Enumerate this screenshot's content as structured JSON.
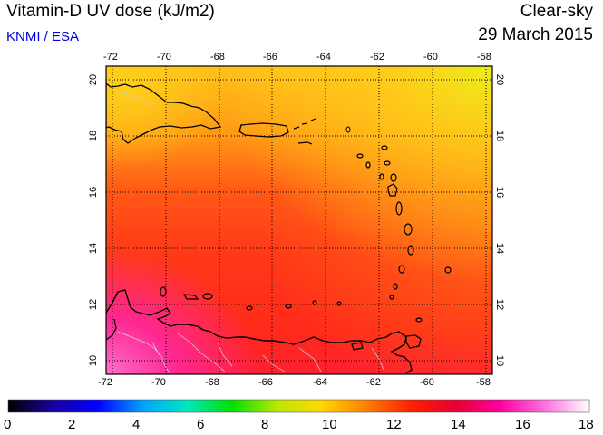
{
  "header": {
    "title": "Vitamin-D UV dose (kJ/m2)",
    "credit": "KNMI / ESA",
    "sky_condition": "Clear-sky",
    "date": "29 March 2015"
  },
  "axes": {
    "lon_ticks": [
      "-72",
      "-70",
      "-68",
      "-66",
      "-64",
      "-62",
      "-60",
      "-58"
    ],
    "lat_ticks": [
      "20",
      "18",
      "16",
      "14",
      "12",
      "10"
    ]
  },
  "colorbar": {
    "labels": [
      "0",
      "2",
      "4",
      "6",
      "8",
      "10",
      "12",
      "14",
      "16",
      "18"
    ],
    "colors": [
      "#000000",
      "#1a00a0",
      "#0000ff",
      "#00a0ff",
      "#00e8c0",
      "#00e000",
      "#b8e800",
      "#ffd800",
      "#ff8000",
      "#ff2000",
      "#e80030",
      "#ff00a0",
      "#ff70e0",
      "#ffffff"
    ]
  },
  "map": {
    "region": "Caribbean",
    "field_colors": {
      "yellow": "#ffd21a",
      "orange": "#ff9b14",
      "red_orange": "#ff5a14",
      "red": "#ff2a1a",
      "magenta": "#ff28a0",
      "pink": "#ff70cc"
    }
  }
}
